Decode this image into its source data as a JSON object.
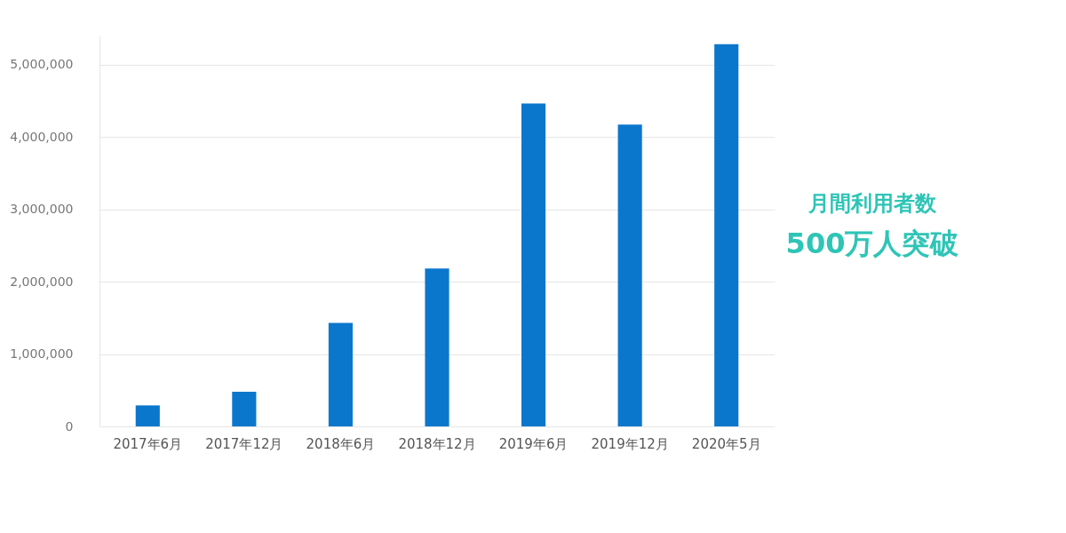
{
  "chart_data": {
    "type": "bar",
    "categories": [
      "2017年6月",
      "2017年12月",
      "2018年6月",
      "2018年12月",
      "2019年6月",
      "2019年12月",
      "2020年5月"
    ],
    "values": [
      290000,
      480000,
      1430000,
      2180000,
      4460000,
      4170000,
      5280000
    ],
    "color": "#0a77cc",
    "ylim": [
      0,
      5400000
    ],
    "yticks": [
      {
        "value": 0,
        "label": "0"
      },
      {
        "value": 1000000,
        "label": "1,000,000"
      },
      {
        "value": 2000000,
        "label": "2,000,000"
      },
      {
        "value": 3000000,
        "label": "3,000,000"
      },
      {
        "value": 4000000,
        "label": "4,000,000"
      },
      {
        "value": 5000000,
        "label": "5,000,000"
      }
    ],
    "grid": "y",
    "annotations": [
      "月間利用者数",
      "500万人突破"
    ]
  }
}
